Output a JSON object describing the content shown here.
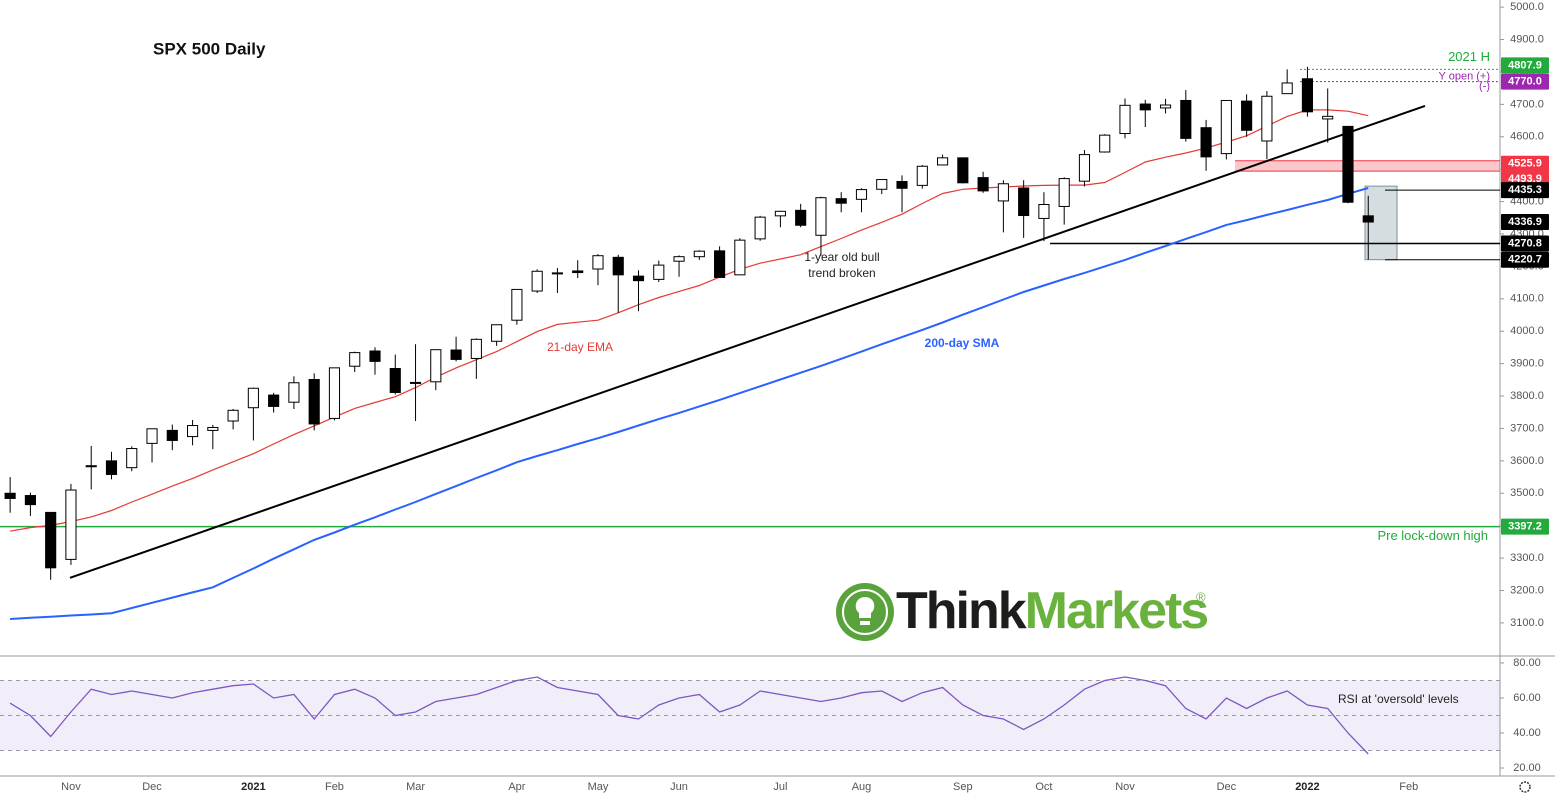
{
  "chart_data": [
    {
      "type": "candlestick",
      "title": "SPX 500 Daily",
      "categories": [
        null,
        null,
        null,
        "Nov",
        null,
        null,
        null,
        "Dec",
        null,
        null,
        null,
        null,
        "2021",
        null,
        null,
        null,
        "Feb",
        null,
        null,
        null,
        "Mar",
        null,
        null,
        null,
        null,
        "Apr",
        null,
        null,
        null,
        "May",
        null,
        null,
        null,
        "Jun",
        null,
        null,
        null,
        null,
        "Jul",
        null,
        null,
        null,
        "Aug",
        null,
        null,
        null,
        null,
        "Sep",
        null,
        null,
        null,
        "Oct",
        null,
        null,
        null,
        "Nov",
        null,
        null,
        null,
        null,
        "Dec",
        null,
        null,
        null,
        "2022",
        null,
        null,
        null,
        null,
        "Feb",
        null,
        null,
        null,
        null
      ],
      "open": [
        3500,
        3493,
        3441,
        3296,
        3583,
        3600,
        3579,
        3654,
        3694,
        3675,
        3694,
        3723,
        3764,
        3803,
        3781,
        3851,
        3731,
        3892,
        3939,
        3885,
        3842,
        3844,
        3942,
        3916,
        3969,
        4034,
        4124,
        4180,
        4186,
        4192,
        4228,
        4170,
        4160,
        4216,
        4230,
        4248,
        4174,
        4285,
        4356,
        4373,
        4296,
        4409,
        4407,
        4438,
        4462,
        4450,
        4513,
        4535,
        4474,
        4402,
        4442,
        4348,
        4385,
        4463,
        4553,
        4610,
        4701,
        4689,
        4712,
        4628,
        4548,
        4710,
        4587,
        4733,
        4779,
        4655,
        4632,
        4356,
        null,
        null,
        null,
        null,
        null,
        null
      ],
      "high": [
        3550,
        3502,
        3441,
        3529,
        3646,
        3628,
        3645,
        3699,
        3712,
        3726,
        3711,
        3760,
        3826,
        3810,
        3861,
        3870,
        3887,
        3937,
        3950,
        3928,
        3960,
        3944,
        3983,
        3978,
        4020,
        4130,
        4191,
        4195,
        4219,
        4238,
        4236,
        4188,
        4218,
        4234,
        4250,
        4262,
        4287,
        4356,
        4372,
        4393,
        4415,
        4429,
        4441,
        4468,
        4481,
        4513,
        4545,
        4535,
        4492,
        4466,
        4466,
        4429,
        4475,
        4559,
        4608,
        4718,
        4714,
        4717,
        4744,
        4652,
        4713,
        4731,
        4741,
        4808,
        4816,
        4749,
        4632,
        4418,
        null,
        null,
        null,
        null,
        null,
        null
      ],
      "low": [
        3440,
        3430,
        3233,
        3279,
        3512,
        3543,
        3568,
        3595,
        3633,
        3648,
        3636,
        3697,
        3663,
        3749,
        3760,
        3694,
        3725,
        3874,
        3866,
        3805,
        3723,
        3818,
        3907,
        3853,
        3955,
        4020,
        4118,
        4118,
        4164,
        4142,
        4057,
        4062,
        4152,
        4168,
        4220,
        4165,
        4174,
        4279,
        4321,
        4321,
        4233,
        4367,
        4367,
        4423,
        4367,
        4440,
        4512,
        4456,
        4427,
        4305,
        4288,
        4278,
        4329,
        4447,
        4551,
        4595,
        4630,
        4672,
        4585,
        4495,
        4530,
        4600,
        4531,
        4733,
        4662,
        4582,
        4395,
        4221,
        null,
        null,
        null,
        null,
        null,
        null
      ],
      "close": [
        3484,
        3465,
        3270,
        3510,
        3585,
        3558,
        3638,
        3699,
        3663,
        3709,
        3703,
        3756,
        3824,
        3768,
        3841,
        3714,
        3887,
        3934,
        3907,
        3811,
        3842,
        3943,
        3913,
        3975,
        4020,
        4129,
        4185,
        4180,
        4181,
        4233,
        4174,
        4156,
        4204,
        4230,
        4247,
        4166,
        4281,
        4352,
        4370,
        4327,
        4412,
        4395,
        4437,
        4468,
        4441,
        4509,
        4535,
        4458,
        4433,
        4455,
        4357,
        4391,
        4471,
        4545,
        4605,
        4697,
        4683,
        4698,
        4595,
        4538,
        4712,
        4620,
        4725,
        4766,
        4677,
        4663,
        4398,
        4337,
        null,
        null,
        null,
        null,
        null,
        null
      ],
      "up_color": "#ffffff",
      "down_color": "#000000",
      "lines": [
        {
          "name": "21-day EMA",
          "color": "#e53935",
          "values": [
            3383,
            3394,
            3401,
            3413,
            3427,
            3447,
            3473,
            3497,
            3522,
            3546,
            3572,
            3597,
            3622,
            3652,
            3681,
            3708,
            3735,
            3762,
            3780,
            3798,
            3826,
            3858,
            3887,
            3912,
            3937,
            3968,
            3999,
            4021,
            4028,
            4034,
            4057,
            4082,
            4104,
            4123,
            4141,
            4167,
            4191,
            4210,
            4223,
            4236,
            4261,
            4286,
            4312,
            4336,
            4361,
            4394,
            4425,
            4438,
            4442,
            4445,
            4448,
            4450,
            4451,
            4451,
            4459,
            4490,
            4522,
            4537,
            4550,
            4565,
            4584,
            4603,
            4633,
            4663,
            4683,
            4683,
            4679,
            4665,
            null,
            null,
            null,
            null,
            null,
            null
          ]
        },
        {
          "name": "200-day SMA",
          "color": "#2962ff",
          "values": [
            3112,
            3116,
            3119,
            3123,
            3126,
            3130,
            3146,
            3162,
            3178,
            3194,
            3210,
            3239,
            3268,
            3298,
            3327,
            3356,
            3379,
            3403,
            3426,
            3450,
            3473,
            3498,
            3522,
            3547,
            3571,
            3596,
            3615,
            3633,
            3652,
            3670,
            3689,
            3709,
            3729,
            3748,
            3768,
            3788,
            3809,
            3830,
            3851,
            3872,
            3893,
            3915,
            3937,
            3960,
            3982,
            4004,
            4027,
            4051,
            4074,
            4098,
            4121,
            4141,
            4161,
            4180,
            4200,
            4220,
            4242,
            4263,
            4285,
            4306,
            4328,
            4343,
            4359,
            4374,
            4390,
            4405,
            4424,
            4442,
            null,
            null,
            null,
            null,
            null,
            null
          ]
        }
      ],
      "ylim": [
        3001,
        5022
      ],
      "yticks": [
        {
          "value": 3100,
          "label": "3100.0"
        },
        {
          "value": 3200,
          "label": "3200.0"
        },
        {
          "value": 3300,
          "label": "3300.0"
        },
        {
          "value": 3400,
          "label": "3400.0"
        },
        {
          "value": 3500,
          "label": "3500.0"
        },
        {
          "value": 3600,
          "label": "3600.0"
        },
        {
          "value": 3700,
          "label": "3700.0"
        },
        {
          "value": 3800,
          "label": "3800.0"
        },
        {
          "value": 3900,
          "label": "3900.0"
        },
        {
          "value": 4000,
          "label": "4000.0"
        },
        {
          "value": 4100,
          "label": "4100.0"
        },
        {
          "value": 4200,
          "label": "4200.0"
        },
        {
          "value": 4300,
          "label": "4300.0"
        },
        {
          "value": 4400,
          "label": "4400.0"
        },
        {
          "value": 4500,
          "label": "4500.0"
        },
        {
          "value": 4600,
          "label": "4600.0"
        },
        {
          "value": 4700,
          "label": "4700.0"
        },
        {
          "value": 4800,
          "label": "4800.0"
        },
        {
          "value": 4900,
          "label": "4900.0"
        },
        {
          "value": 5000,
          "label": "5000.0"
        }
      ],
      "grid": false,
      "levels": [
        {
          "value": 4807.9,
          "color": "#22ab3c",
          "notes": [
            "2021 H"
          ]
        },
        {
          "value": 4770,
          "label": "4770.0",
          "color": "#9c27b0",
          "notes": [
            "Y open (+)",
            "(-)"
          ]
        },
        {
          "value": 4525.9,
          "color": "#f23645"
        },
        {
          "value": 4493.9,
          "color": "#f23645"
        },
        {
          "value": 4435.3,
          "color": "#000000"
        },
        {
          "value": 4336.9,
          "color": "#000000"
        },
        {
          "value": 4270.8,
          "color": "#000000"
        },
        {
          "value": 4220.7,
          "color": "#000000"
        },
        {
          "value": 3397.2,
          "color": "#22ab3c",
          "notes": [
            "Pre lock-down high"
          ]
        }
      ],
      "trendline": {
        "values": [
          3239,
          4695
        ],
        "color": "#000000"
      },
      "annotation": [
        "1-year old bull",
        "trend broken"
      ]
    },
    {
      "type": "line",
      "name": "RSI",
      "color": "#7e57c2",
      "values": [
        57,
        50,
        38,
        52,
        65,
        62,
        64,
        62,
        60,
        63,
        65,
        67,
        68,
        60,
        62,
        48,
        62,
        65,
        60,
        50,
        52,
        58,
        60,
        62,
        66,
        70,
        72,
        66,
        64,
        62,
        50,
        48,
        56,
        60,
        62,
        52,
        56,
        64,
        62,
        60,
        58,
        60,
        63,
        64,
        58,
        63,
        66,
        56,
        50,
        48,
        42,
        48,
        56,
        65,
        70,
        72,
        70,
        67,
        54,
        48,
        60,
        54,
        60,
        64,
        56,
        54,
        40,
        28,
        null,
        null,
        null,
        null,
        null,
        null
      ],
      "ylim": [
        16,
        83.4
      ],
      "yticks": [
        {
          "value": 20,
          "label": "20.00"
        },
        {
          "value": 40,
          "label": "40.00"
        },
        {
          "value": 60,
          "label": "60.00"
        },
        {
          "value": 80,
          "label": "80.00"
        }
      ],
      "levels": [
        30,
        50,
        70
      ],
      "annotation": "RSI at 'oversold' levels"
    }
  ],
  "logo": {
    "think": "Think",
    "markets": "Markets",
    "mark": "®"
  }
}
